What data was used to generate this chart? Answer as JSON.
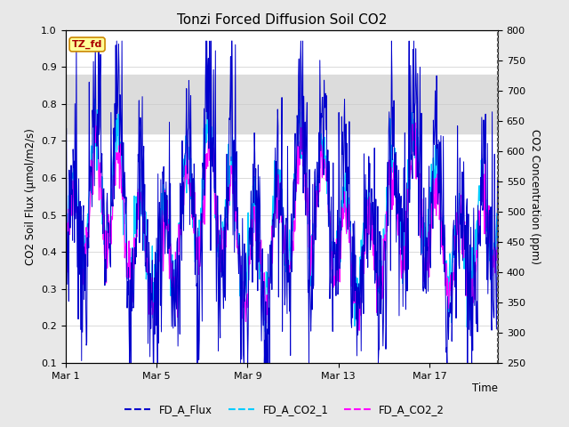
{
  "title": "Tonzi Forced Diffusion Soil CO2",
  "xlabel": "Time",
  "ylabel_left": "CO2 Soil Flux (μmol/m2/s)",
  "ylabel_right": "CO2 Concentration (ppm)",
  "ylim_left": [
    0.1,
    1.0
  ],
  "ylim_right": [
    250,
    800
  ],
  "yticks_left": [
    0.1,
    0.2,
    0.3,
    0.4,
    0.5,
    0.6,
    0.7,
    0.8,
    0.9,
    1.0
  ],
  "yticks_right": [
    250,
    300,
    350,
    400,
    450,
    500,
    550,
    600,
    650,
    700,
    750,
    800
  ],
  "shaded_region": [
    0.72,
    0.88
  ],
  "xtick_labels": [
    "Mar 1",
    "Mar 5",
    "Mar 9",
    "Mar 13",
    "Mar 17"
  ],
  "xtick_positions": [
    0,
    4,
    8,
    12,
    16
  ],
  "total_days": 19,
  "tag_text": "TZ_fd",
  "tag_bg": "#FFFF99",
  "tag_border": "#CC8800",
  "tag_text_color": "#AA0000",
  "color_flux": "#0000CC",
  "color_co2_1": "#00CCFF",
  "color_co2_2": "#FF00FF",
  "legend_labels": [
    "FD_A_Flux",
    "FD_A_CO2_1",
    "FD_A_CO2_2"
  ],
  "background_color": "#E8E8E8",
  "plot_bg": "#FFFFFF",
  "shaded_color": "#DCDCDC",
  "grid_color": "#CCCCCC"
}
